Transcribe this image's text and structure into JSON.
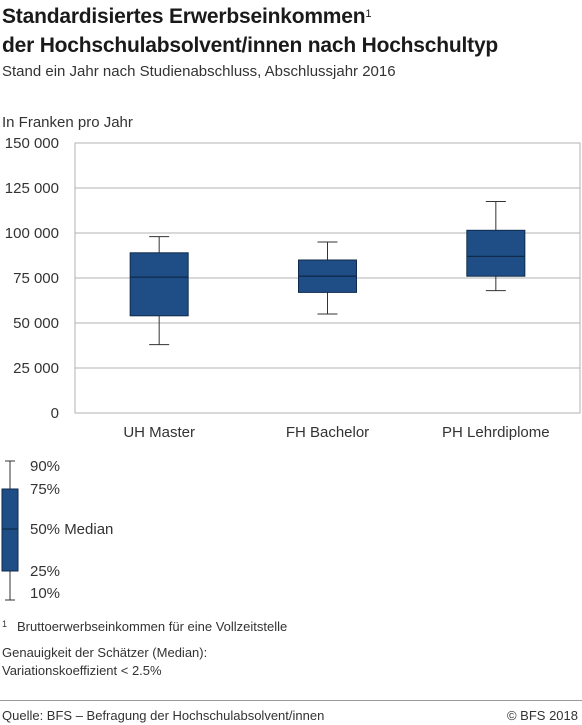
{
  "header": {
    "title_line1": "Standardisiertes Erwerbseinkommen",
    "title_footnote_mark": "1",
    "title_line2": "der Hochschulabsolvent/innen nach Hochschultyp",
    "subtitle": "Stand ein Jahr nach Studienabschluss, Abschlussjahr 2016",
    "unit": "In Franken pro Jahr"
  },
  "colors": {
    "box_fill": "#1f4e86",
    "box_stroke": "#0f2a4a",
    "grid": "#b3b3b3",
    "axis_text": "#333333"
  },
  "chart_data": {
    "type": "boxplot",
    "ylim": [
      0,
      150000
    ],
    "yticks": [
      0,
      25000,
      50000,
      75000,
      100000,
      125000,
      150000
    ],
    "ytick_labels": [
      "0",
      "25 000",
      "50 000",
      "75 000",
      "100 000",
      "125 000",
      "150 000"
    ],
    "grid": true,
    "categories": [
      "UH Master",
      "FH Bachelor",
      "PH Lehrdiplome"
    ],
    "boxes": [
      {
        "p10": 38000,
        "p25": 54000,
        "median": 75500,
        "p75": 89000,
        "p90": 98000
      },
      {
        "p10": 55000,
        "p25": 67000,
        "median": 76000,
        "p75": 85000,
        "p90": 95000
      },
      {
        "p10": 68000,
        "p25": 76000,
        "median": 87000,
        "p75": 101500,
        "p90": 117500
      }
    ]
  },
  "legend": {
    "p90": "90%",
    "p75": "75%",
    "median": "50% Median",
    "p25": "25%",
    "p10": "10%"
  },
  "footnotes": {
    "note1_mark": "1",
    "note1": "Bruttoerwerbseinkommen für eine Vollzeitstelle",
    "precision_line1": "Genauigkeit der Schätzer (Median):",
    "precision_line2": "Variationskoeffizient < 2.5%"
  },
  "footer": {
    "source": "Quelle: BFS – Befragung der Hochschulabsolvent/innen",
    "copyright": "© BFS 2018"
  }
}
